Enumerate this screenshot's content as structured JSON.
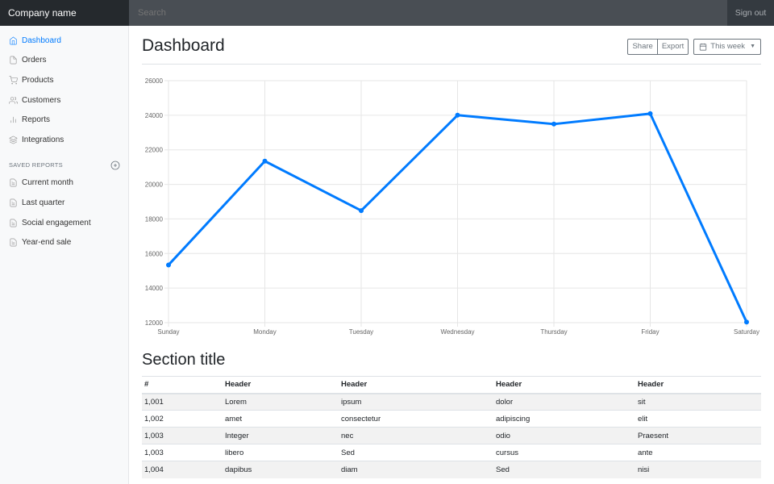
{
  "header": {
    "brand": "Company name",
    "search_placeholder": "Search",
    "signout": "Sign out"
  },
  "sidebar": {
    "items": [
      {
        "label": "Dashboard",
        "icon": "home-icon"
      },
      {
        "label": "Orders",
        "icon": "file-icon"
      },
      {
        "label": "Products",
        "icon": "cart-icon"
      },
      {
        "label": "Customers",
        "icon": "users-icon"
      },
      {
        "label": "Reports",
        "icon": "bar-chart-icon"
      },
      {
        "label": "Integrations",
        "icon": "layers-icon"
      }
    ],
    "saved_heading": "SAVED REPORTS",
    "saved": [
      {
        "label": "Current month"
      },
      {
        "label": "Last quarter"
      },
      {
        "label": "Social engagement"
      },
      {
        "label": "Year-end sale"
      }
    ]
  },
  "main": {
    "title": "Dashboard",
    "share": "Share",
    "export": "Export",
    "period": "This week",
    "section_title": "Section title"
  },
  "colors": {
    "accent": "#007bff"
  },
  "chart_data": {
    "type": "line",
    "categories": [
      "Sunday",
      "Monday",
      "Tuesday",
      "Wednesday",
      "Thursday",
      "Friday",
      "Saturday"
    ],
    "values": [
      15339,
      21345,
      18483,
      24003,
      23489,
      24092,
      12034
    ],
    "ylim": [
      12000,
      26000
    ],
    "yticks": [
      "12000",
      "14000",
      "16000",
      "18000",
      "20000",
      "22000",
      "24000",
      "26000"
    ],
    "grid": true,
    "legend": "none"
  },
  "table": {
    "headers": [
      "#",
      "Header",
      "Header",
      "Header",
      "Header"
    ],
    "rows": [
      [
        "1,001",
        "Lorem",
        "ipsum",
        "dolor",
        "sit"
      ],
      [
        "1,002",
        "amet",
        "consectetur",
        "adipiscing",
        "elit"
      ],
      [
        "1,003",
        "Integer",
        "nec",
        "odio",
        "Praesent"
      ],
      [
        "1,003",
        "libero",
        "Sed",
        "cursus",
        "ante"
      ],
      [
        "1,004",
        "dapibus",
        "diam",
        "Sed",
        "nisi"
      ]
    ]
  }
}
